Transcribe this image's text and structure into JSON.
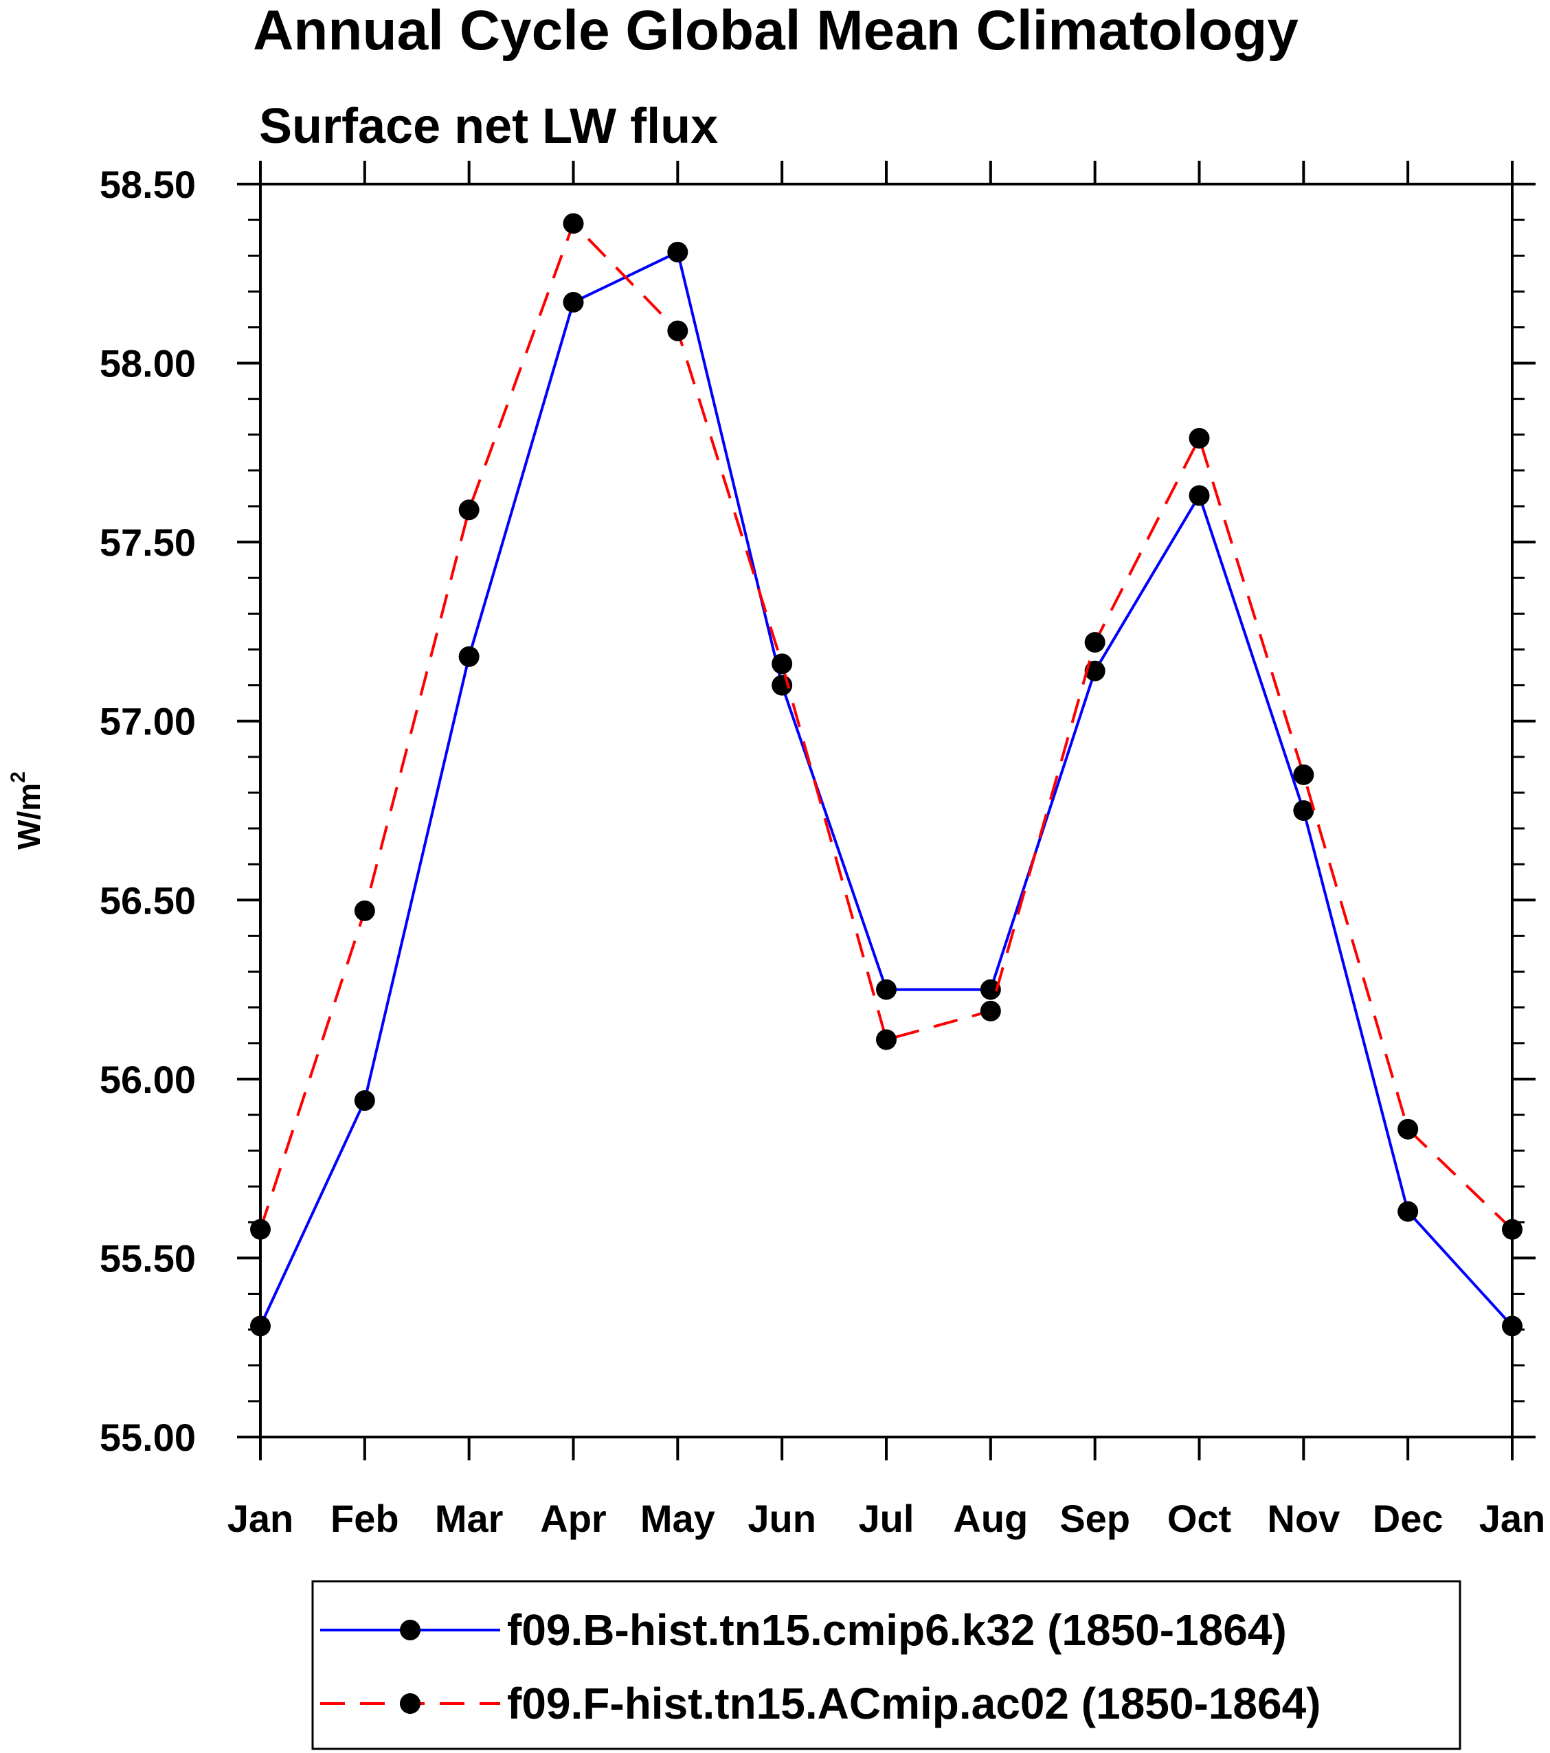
{
  "chart_data": {
    "type": "line",
    "title": "Annual Cycle Global Mean Climatology",
    "subtitle": "Surface net LW flux",
    "ylabel": "W/m",
    "ylabel_superscript": "2",
    "xlabel": "",
    "categories": [
      "Jan",
      "Feb",
      "Mar",
      "Apr",
      "May",
      "Jun",
      "Jul",
      "Aug",
      "Sep",
      "Oct",
      "Nov",
      "Dec",
      "Jan"
    ],
    "ylim": [
      55.0,
      58.5
    ],
    "yticks": [
      55.0,
      55.5,
      56.0,
      56.5,
      57.0,
      57.5,
      58.0,
      58.5
    ],
    "ytick_labels": [
      "55.00",
      "55.50",
      "56.00",
      "56.50",
      "57.00",
      "57.50",
      "58.00",
      "58.50"
    ],
    "grid": false,
    "legend_position": "bottom",
    "series": [
      {
        "name": "f09.B-hist.tn15.cmip6.k32 (1850-1864)",
        "color": "#0000ff",
        "line_style": "solid",
        "marker": "filled-circle",
        "values": [
          55.31,
          55.94,
          57.18,
          58.17,
          58.31,
          57.1,
          56.25,
          56.25,
          57.14,
          57.63,
          56.75,
          55.63,
          55.31
        ]
      },
      {
        "name": "f09.F-hist.tn15.ACmip.ac02 (1850-1864)",
        "color": "#ff0000",
        "line_style": "dashed",
        "marker": "filled-circle",
        "values": [
          55.58,
          56.47,
          57.59,
          58.39,
          58.09,
          57.16,
          56.11,
          56.19,
          57.22,
          57.79,
          56.85,
          55.86,
          55.58
        ]
      }
    ]
  }
}
